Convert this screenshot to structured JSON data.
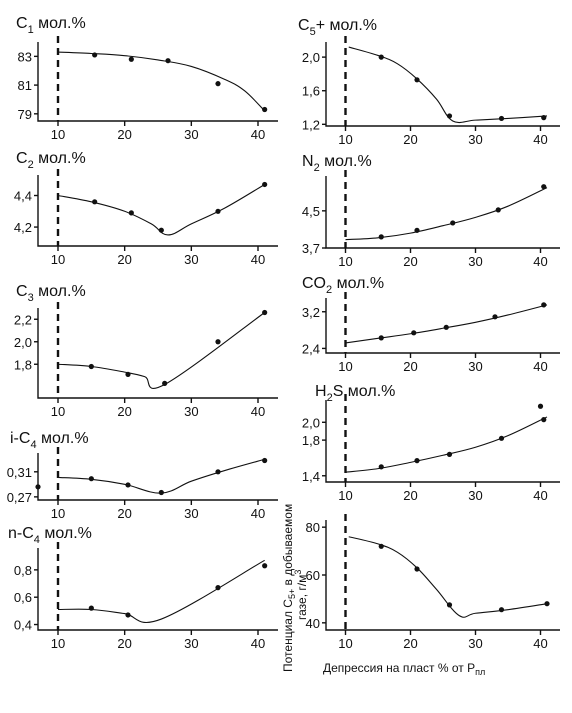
{
  "chart_data": [
    {
      "type": "line",
      "title": "C",
      "title_sub": "1",
      "title_suffix": " мол.%",
      "x_ticks": [
        10,
        20,
        30,
        40
      ],
      "y_ticks": [
        79,
        81,
        83
      ],
      "xlim": [
        7,
        43
      ],
      "ylim": [
        78.5,
        84
      ],
      "dashed_x": 10,
      "points": [
        [
          15.5,
          83.1
        ],
        [
          21,
          82.8
        ],
        [
          26.5,
          82.7
        ],
        [
          34,
          81.1
        ],
        [
          41,
          79.3
        ]
      ],
      "curve": [
        [
          10,
          83.3
        ],
        [
          15,
          83.2
        ],
        [
          20,
          83.05
        ],
        [
          25,
          82.75
        ],
        [
          30,
          82.3
        ],
        [
          35,
          81.4
        ],
        [
          38,
          80.6
        ],
        [
          41,
          79.2
        ]
      ]
    },
    {
      "type": "line",
      "title": "C",
      "title_sub": "2",
      "title_suffix": " мол.%",
      "x_ticks": [
        10,
        20,
        30,
        40
      ],
      "y_ticks": [
        "4,2",
        "4,4"
      ],
      "y_tick_values": [
        4.2,
        4.4
      ],
      "xlim": [
        7,
        43
      ],
      "ylim": [
        4.08,
        4.53
      ],
      "dashed_x": 10,
      "points": [
        [
          15.5,
          4.36
        ],
        [
          21,
          4.29
        ],
        [
          25.5,
          4.18
        ],
        [
          34,
          4.3
        ],
        [
          41,
          4.47
        ]
      ],
      "curve": [
        [
          10,
          4.4
        ],
        [
          15,
          4.36
        ],
        [
          20,
          4.3
        ],
        [
          24,
          4.22
        ],
        [
          26.5,
          4.15
        ],
        [
          30,
          4.22
        ],
        [
          35,
          4.32
        ],
        [
          41,
          4.47
        ]
      ]
    },
    {
      "type": "line",
      "title": "C",
      "title_sub": "3",
      "title_suffix": " мол.%",
      "x_ticks": [
        10,
        20,
        30,
        40
      ],
      "y_ticks": [
        "1,8",
        "2,0",
        "2,2"
      ],
      "y_tick_values": [
        1.8,
        2.0,
        2.2
      ],
      "xlim": [
        7,
        43
      ],
      "ylim": [
        1.5,
        2.3
      ],
      "dashed_x": 10,
      "points": [
        [
          15,
          1.78
        ],
        [
          20.5,
          1.71
        ],
        [
          26,
          1.63
        ],
        [
          34,
          2.0
        ],
        [
          41,
          2.26
        ]
      ],
      "curve": [
        [
          10,
          1.8
        ],
        [
          15,
          1.78
        ],
        [
          20,
          1.73
        ],
        [
          23,
          1.69
        ],
        [
          26,
          1.62
        ],
        [
          41,
          2.26
        ]
      ]
    },
    {
      "type": "line",
      "title": "i-C",
      "title_sub": "4",
      "title_suffix": " мол.%",
      "x_ticks": [
        10,
        20,
        30,
        40
      ],
      "y_ticks": [
        "0,27",
        "0,31"
      ],
      "y_tick_values": [
        0.27,
        0.31
      ],
      "xlim": [
        7,
        43
      ],
      "ylim": [
        0.265,
        0.34
      ],
      "dashed_x": 10,
      "points": [
        [
          7,
          0.286
        ],
        [
          15,
          0.299
        ],
        [
          20.5,
          0.289
        ],
        [
          25.5,
          0.277
        ],
        [
          34,
          0.31
        ],
        [
          41,
          0.328
        ]
      ],
      "curve": [
        [
          10,
          0.301
        ],
        [
          15,
          0.298
        ],
        [
          20,
          0.29
        ],
        [
          25.5,
          0.276
        ],
        [
          30,
          0.295
        ],
        [
          35,
          0.312
        ],
        [
          41,
          0.33
        ]
      ]
    },
    {
      "type": "line",
      "title": "n-C",
      "title_sub": "4",
      "title_suffix": " мол.%",
      "x_ticks": [
        10,
        20,
        30,
        40
      ],
      "y_ticks": [
        "0,4",
        "0,6",
        "0,8"
      ],
      "y_tick_values": [
        0.4,
        0.6,
        0.8
      ],
      "xlim": [
        7,
        43
      ],
      "ylim": [
        0.36,
        0.96
      ],
      "dashed_x": 10,
      "points": [
        [
          15,
          0.52
        ],
        [
          20.5,
          0.47
        ],
        [
          34,
          0.67
        ],
        [
          41,
          0.83
        ]
      ],
      "curve": [
        [
          10,
          0.51
        ],
        [
          15,
          0.51
        ],
        [
          20,
          0.48
        ],
        [
          25.5,
          0.44
        ],
        [
          41,
          0.87
        ]
      ]
    },
    {
      "type": "line",
      "title": "C",
      "title_sub": "5",
      "title_suffix": "+ мол.%",
      "x_ticks": [
        10,
        20,
        30,
        40
      ],
      "y_ticks": [
        "1,2",
        "1,6",
        "2,0"
      ],
      "y_tick_values": [
        1.2,
        1.6,
        2.0
      ],
      "xlim": [
        7,
        43
      ],
      "ylim": [
        1.18,
        2.18
      ],
      "dashed_x": 10,
      "points": [
        [
          15.5,
          2.0
        ],
        [
          21,
          1.73
        ],
        [
          26,
          1.3
        ],
        [
          34,
          1.27
        ],
        [
          40.5,
          1.28
        ]
      ],
      "curve": [
        [
          10.5,
          2.12
        ],
        [
          15,
          2.02
        ],
        [
          18,
          1.92
        ],
        [
          21,
          1.74
        ],
        [
          24,
          1.5
        ],
        [
          26.5,
          1.24
        ],
        [
          30,
          1.25
        ],
        [
          35,
          1.27
        ],
        [
          41,
          1.3
        ]
      ]
    },
    {
      "type": "line",
      "title": "N",
      "title_sub": "2",
      "title_suffix": " мол.%",
      "x_ticks": [
        10,
        20,
        30,
        40
      ],
      "y_ticks": [
        "3,7",
        "4,5"
      ],
      "y_tick_values": [
        3.7,
        4.5
      ],
      "xlim": [
        7,
        43
      ],
      "ylim": [
        3.7,
        5.25
      ],
      "dashed_x": 10,
      "points": [
        [
          15.5,
          3.94
        ],
        [
          21,
          4.08
        ],
        [
          26.5,
          4.24
        ],
        [
          33.5,
          4.52
        ],
        [
          40.5,
          5.02
        ]
      ],
      "curve": [
        [
          10,
          3.88
        ],
        [
          15,
          3.92
        ],
        [
          20,
          4.02
        ],
        [
          25,
          4.18
        ],
        [
          30,
          4.36
        ],
        [
          35,
          4.6
        ],
        [
          41,
          5.0
        ]
      ]
    },
    {
      "type": "line",
      "title": "CO",
      "title_sub": "2",
      "title_suffix": " мол.%",
      "x_ticks": [
        10,
        20,
        30,
        40
      ],
      "y_ticks": [
        "2,4",
        "3,2"
      ],
      "y_tick_values": [
        2.4,
        3.2
      ],
      "xlim": [
        7,
        43
      ],
      "ylim": [
        2.3,
        3.5
      ],
      "dashed_x": 10,
      "points": [
        [
          15.5,
          2.63
        ],
        [
          20.5,
          2.74
        ],
        [
          25.5,
          2.86
        ],
        [
          33,
          3.09
        ],
        [
          40.5,
          3.35
        ]
      ],
      "curve": [
        [
          10,
          2.52
        ],
        [
          15,
          2.62
        ],
        [
          20,
          2.72
        ],
        [
          25,
          2.84
        ],
        [
          30,
          2.97
        ],
        [
          35,
          3.13
        ],
        [
          41,
          3.35
        ]
      ]
    },
    {
      "type": "line",
      "title": "H",
      "title_sub": "2",
      "title_suffix": "S мол.%",
      "x_ticks": [
        10,
        20,
        30,
        40
      ],
      "y_ticks": [
        "1,4",
        "1,8",
        "2,0"
      ],
      "y_tick_values": [
        1.4,
        1.8,
        2.0
      ],
      "xlim": [
        7,
        43
      ],
      "ylim": [
        1.33,
        2.25
      ],
      "dashed_x": 10,
      "points": [
        [
          15.5,
          1.5
        ],
        [
          21,
          1.57
        ],
        [
          26,
          1.64
        ],
        [
          34,
          1.82
        ],
        [
          40,
          2.18
        ],
        [
          40.5,
          2.03
        ]
      ],
      "curve": [
        [
          10,
          1.44
        ],
        [
          15,
          1.48
        ],
        [
          20,
          1.55
        ],
        [
          25,
          1.63
        ],
        [
          30,
          1.72
        ],
        [
          35,
          1.85
        ],
        [
          41,
          2.06
        ]
      ]
    },
    {
      "type": "line",
      "title": "",
      "title_sub": "",
      "title_suffix": "",
      "x_ticks": [
        10,
        20,
        30,
        40
      ],
      "y_ticks": [
        40,
        60,
        80
      ],
      "y_tick_values": [
        40,
        60,
        80
      ],
      "xlim": [
        7,
        43
      ],
      "ylim": [
        37,
        83
      ],
      "dashed_x": 10,
      "xlabel": "Депрессия на пласт % от Р",
      "xlabel_sub": "пл",
      "ylabel_lines": [
        "Потенциал С",
        "5+",
        " в добываемом",
        "газе, г/м",
        "3"
      ],
      "points": [
        [
          15.5,
          72
        ],
        [
          21,
          62.5
        ],
        [
          26,
          47.5
        ],
        [
          34,
          45.5
        ],
        [
          41,
          48
        ]
      ],
      "curve": [
        [
          10.5,
          76
        ],
        [
          15,
          73
        ],
        [
          18,
          69.5
        ],
        [
          21,
          63
        ],
        [
          24,
          54
        ],
        [
          27.5,
          43
        ],
        [
          30,
          44
        ],
        [
          35,
          45.5
        ],
        [
          41,
          48
        ]
      ]
    }
  ]
}
